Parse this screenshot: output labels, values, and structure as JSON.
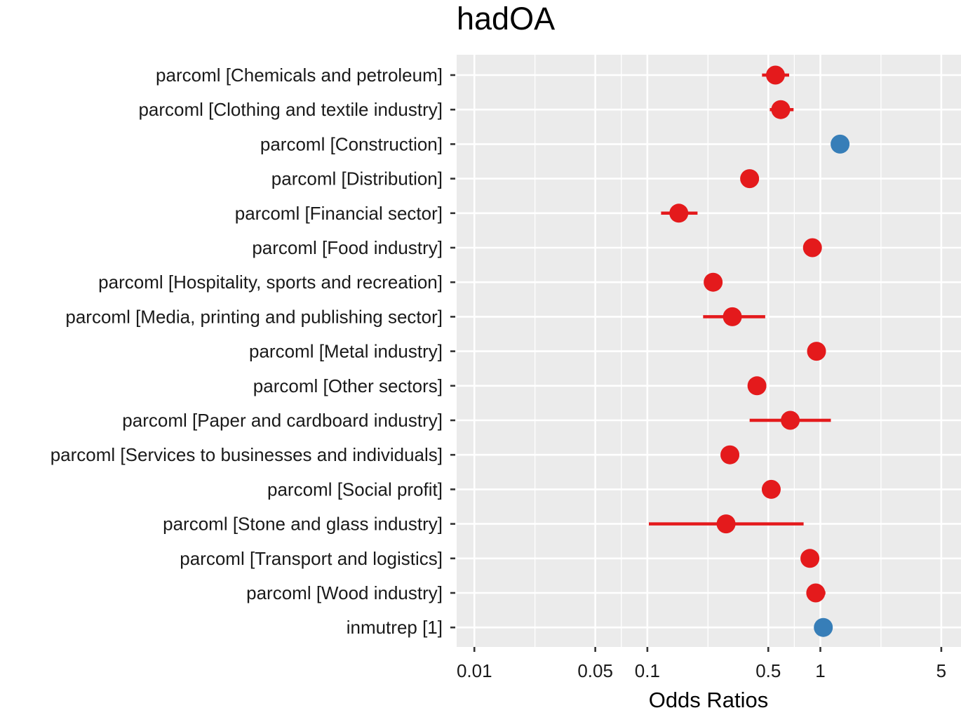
{
  "chart_data": {
    "type": "forest",
    "title": "hadOA",
    "xlabel": "Odds Ratios",
    "ylabel": "",
    "x_scale": "log10",
    "xlim": [
      0.0079,
      6.5
    ],
    "x_ticks": [
      0.01,
      0.05,
      0.1,
      0.5,
      1,
      5
    ],
    "x_tick_labels": [
      "0.01",
      "0.05",
      "0.1",
      "0.5",
      "1",
      "5"
    ],
    "x_minor_ticks": [
      0.0224,
      0.0707,
      0.224,
      0.707,
      2.24
    ],
    "grid": true,
    "legend": "none",
    "colors": {
      "negative": "#E41A1C",
      "positive": "#377EB8",
      "panel_background": "#EBEBEB",
      "grid": "#FFFFFF"
    },
    "terms": [
      {
        "label": "parcoml [Chemicals and petroleum]",
        "estimate": 0.55,
        "ci_low": 0.46,
        "ci_high": 0.66,
        "direction": "negative"
      },
      {
        "label": "parcoml [Clothing and textile industry]",
        "estimate": 0.59,
        "ci_low": 0.51,
        "ci_high": 0.7,
        "direction": "negative"
      },
      {
        "label": "parcoml [Construction]",
        "estimate": 1.3,
        "ci_low": 1.3,
        "ci_high": 1.3,
        "direction": "positive"
      },
      {
        "label": "parcoml [Distribution]",
        "estimate": 0.39,
        "ci_low": 0.39,
        "ci_high": 0.39,
        "direction": "negative"
      },
      {
        "label": "parcoml [Financial sector]",
        "estimate": 0.152,
        "ci_low": 0.12,
        "ci_high": 0.195,
        "direction": "negative"
      },
      {
        "label": "parcoml [Food industry]",
        "estimate": 0.9,
        "ci_low": 0.82,
        "ci_high": 1.01,
        "direction": "negative"
      },
      {
        "label": "parcoml [Hospitality, sports and recreation]",
        "estimate": 0.24,
        "ci_low": 0.24,
        "ci_high": 0.24,
        "direction": "negative"
      },
      {
        "label": "parcoml [Media, printing and publishing sector]",
        "estimate": 0.31,
        "ci_low": 0.21,
        "ci_high": 0.48,
        "direction": "negative"
      },
      {
        "label": "parcoml [Metal industry]",
        "estimate": 0.95,
        "ci_low": 0.95,
        "ci_high": 0.95,
        "direction": "negative"
      },
      {
        "label": "parcoml [Other sectors]",
        "estimate": 0.43,
        "ci_low": 0.43,
        "ci_high": 0.43,
        "direction": "negative"
      },
      {
        "label": "parcoml [Paper and cardboard industry]",
        "estimate": 0.67,
        "ci_low": 0.39,
        "ci_high": 1.15,
        "direction": "negative"
      },
      {
        "label": "parcoml [Services to businesses and individuals]",
        "estimate": 0.3,
        "ci_low": 0.3,
        "ci_high": 0.3,
        "direction": "negative"
      },
      {
        "label": "parcoml [Social profit]",
        "estimate": 0.52,
        "ci_low": 0.52,
        "ci_high": 0.52,
        "direction": "negative"
      },
      {
        "label": "parcoml [Stone and glass industry]",
        "estimate": 0.285,
        "ci_low": 0.102,
        "ci_high": 0.8,
        "direction": "negative"
      },
      {
        "label": "parcoml [Transport and logistics]",
        "estimate": 0.87,
        "ci_low": 0.87,
        "ci_high": 0.87,
        "direction": "negative"
      },
      {
        "label": "parcoml [Wood industry]",
        "estimate": 0.94,
        "ci_low": 0.84,
        "ci_high": 1.07,
        "direction": "negative"
      },
      {
        "label": "inmutrep [1]",
        "estimate": 1.04,
        "ci_low": 1.04,
        "ci_high": 1.04,
        "direction": "positive"
      }
    ]
  }
}
